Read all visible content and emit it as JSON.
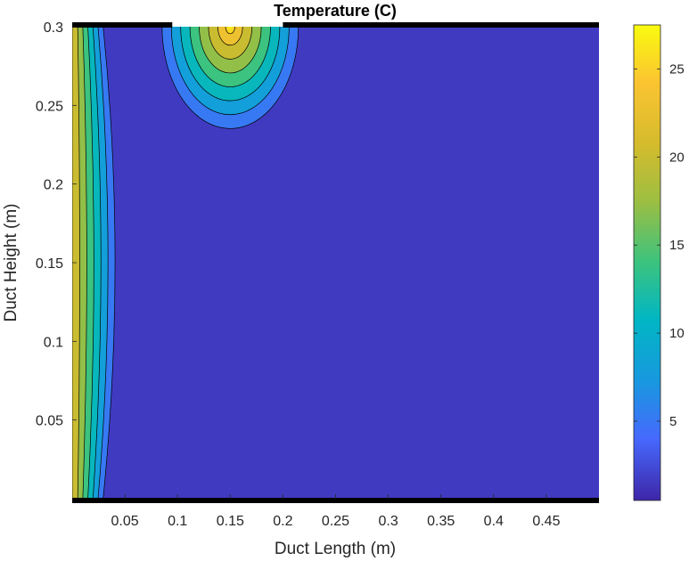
{
  "chart_data": {
    "type": "heatmap",
    "subtype": "filled-contour",
    "title": "Temperature (C)",
    "xlabel": "Duct Length (m)",
    "ylabel": "Duct Height (m)",
    "xlim": [
      0,
      0.5
    ],
    "ylim": [
      0,
      0.3
    ],
    "x_ticks": [
      "0.05",
      "0.1",
      "0.15",
      "0.2",
      "0.25",
      "0.3",
      "0.35",
      "0.4",
      "0.45"
    ],
    "y_ticks": [
      "0.05",
      "0.1",
      "0.15",
      "0.2",
      "0.25",
      "0.3"
    ],
    "colorbar": {
      "range": [
        0.5,
        27.5
      ],
      "ticks": [
        "5",
        "10",
        "15",
        "20",
        "25"
      ],
      "colormap": "parula"
    },
    "colors": {
      "parula_stops": [
        "#3e26a8",
        "#4669fd",
        "#1898df",
        "#01b6c4",
        "#3bc37f",
        "#9dbe41",
        "#d5bb2d",
        "#fbc431",
        "#f9fb0e"
      ],
      "boundary": "#000000",
      "contour_line": "#000000"
    },
    "boundaries": [
      {
        "edge": "top",
        "x": [
          0,
          0.095
        ],
        "color": "black"
      },
      {
        "edge": "top",
        "x": [
          0.2,
          0.5
        ],
        "color": "black"
      },
      {
        "edge": "bottom",
        "x": [
          0,
          0.5
        ],
        "color": "black"
      }
    ],
    "inlet_left": {
      "x": 0,
      "temperature": 22,
      "cold_boundary_x_at_center": 0.055,
      "cold_boundary_x_at_ends": 0.035
    },
    "hot_source_top": {
      "center_x": 0.15,
      "y": 0.3,
      "opening_x": [
        0.095,
        0.2
      ],
      "max_temperature": 27,
      "outer_radius": 0.075
    },
    "background_temperature": 1.5,
    "contour_levels": [
      1.5,
      5,
      8,
      11,
      14,
      17,
      20,
      23,
      25.5
    ]
  }
}
